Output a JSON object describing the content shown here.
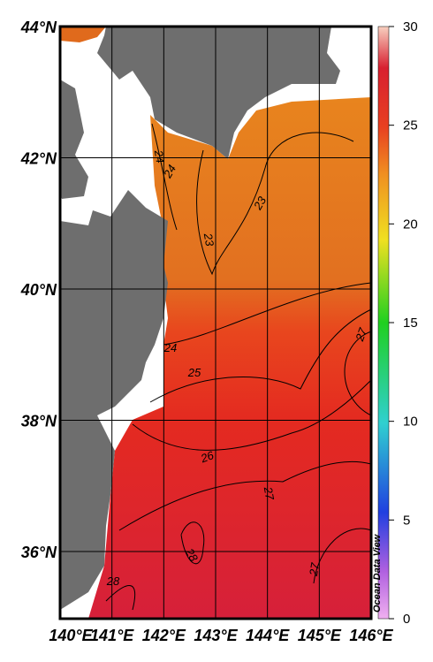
{
  "map": {
    "lat_ticks": [
      {
        "value": 44,
        "label": "44°N"
      },
      {
        "value": 42,
        "label": "42°N"
      },
      {
        "value": 40,
        "label": "40°N"
      },
      {
        "value": 38,
        "label": "38°N"
      },
      {
        "value": 36,
        "label": "36°N"
      }
    ],
    "lon_ticks": [
      {
        "value": 140,
        "label": "140°E"
      },
      {
        "value": 141,
        "label": "141°E"
      },
      {
        "value": 142,
        "label": "142°E"
      },
      {
        "value": 143,
        "label": "143°E"
      },
      {
        "value": 144,
        "label": "144°E"
      },
      {
        "value": 145,
        "label": "145°E"
      },
      {
        "value": 146,
        "label": "146°E"
      }
    ],
    "colorbar": {
      "range": [
        0,
        30
      ],
      "ticks": [
        0,
        5,
        10,
        15,
        20,
        25,
        30
      ]
    },
    "contour_labels": [
      24,
      24,
      23,
      23,
      24,
      25,
      26,
      27,
      27,
      28,
      28,
      27
    ],
    "credit": "Ocean Data View"
  }
}
